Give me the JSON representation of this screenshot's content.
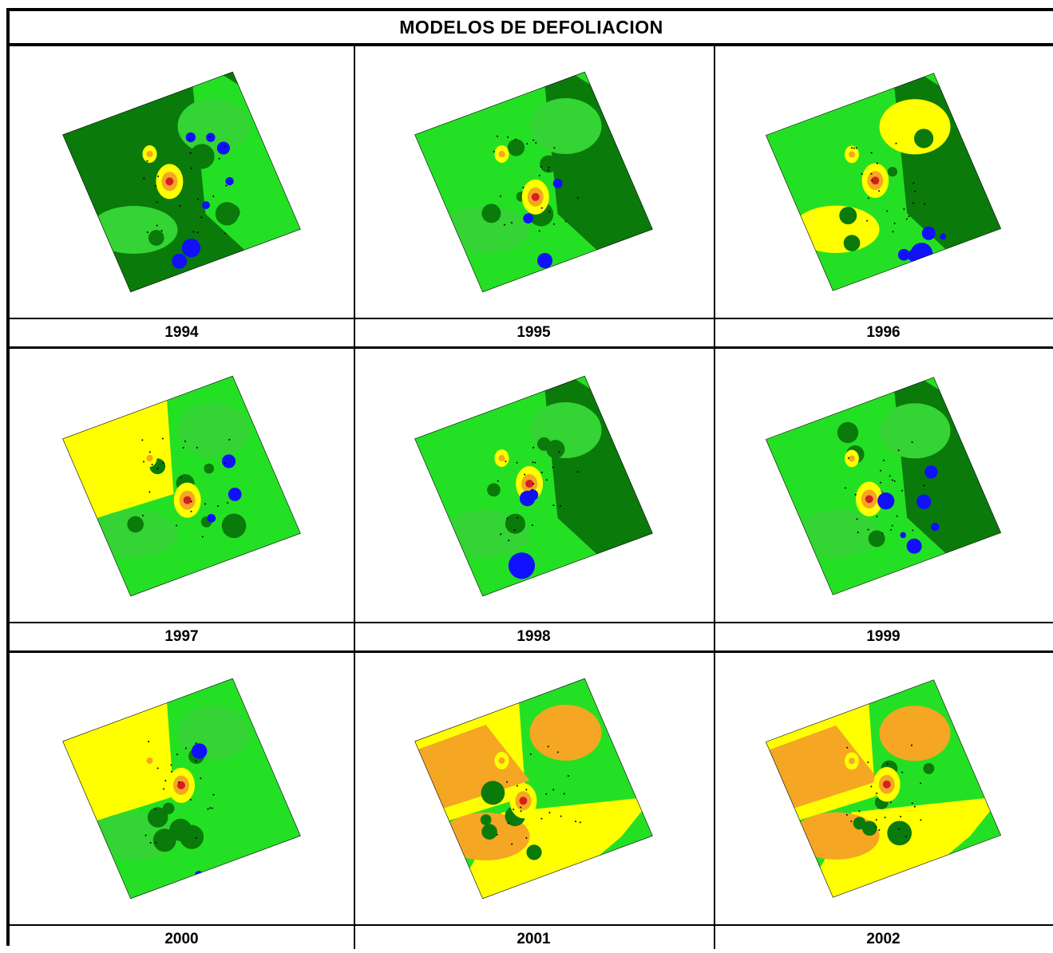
{
  "title": "MODELOS DE DEFOLIACION",
  "colors": {
    "dark_green": "#0a7a0a",
    "green": "#33d433",
    "light_green": "#24e024",
    "yellow": "#ffff00",
    "orange": "#f5a623",
    "red": "#d42020",
    "blue": "#1010ff"
  },
  "panels": [
    {
      "year": "1994",
      "theme": "dark"
    },
    {
      "year": "1995",
      "theme": "green"
    },
    {
      "year": "1996",
      "theme": "mixed"
    },
    {
      "year": "1997",
      "theme": "yellow-left"
    },
    {
      "year": "1998",
      "theme": "green"
    },
    {
      "year": "1999",
      "theme": "dark-right"
    },
    {
      "year": "2000",
      "theme": "yellow-left"
    },
    {
      "year": "2001",
      "theme": "orange-left"
    },
    {
      "year": "2002",
      "theme": "orange-left"
    }
  ]
}
